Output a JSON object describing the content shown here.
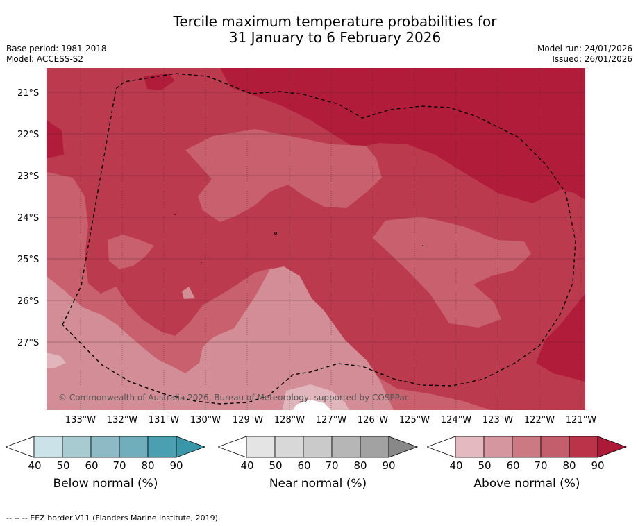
{
  "title_line1": "Tercile maximum temperature probabilities for",
  "title_line2": "31 January to 6 February 2026",
  "base_period": "Base period: 1981-2018",
  "model": "Model: ACCESS-S2",
  "model_run": "Model run: 24/01/2026",
  "issued": "Issued: 26/01/2026",
  "lat_labels": [
    "21°S",
    "22°S",
    "23°S",
    "24°S",
    "25°S",
    "26°S",
    "27°S"
  ],
  "lon_labels": [
    "133°W",
    "132°W",
    "131°W",
    "130°W",
    "129°W",
    "128°W",
    "127°W",
    "126°W",
    "125°W",
    "124°W",
    "123°W",
    "122°W",
    "121°W"
  ],
  "copyright": "© Commonwealth of Australia 2026, Bureau of Meteorology, supported by COSPPac",
  "legend": {
    "below": {
      "label": "Below normal (%)",
      "colors": [
        "#ffffff",
        "#cbe3e8",
        "#a8cbd2",
        "#8dbac5",
        "#70aebb",
        "#4aa0b0",
        "#3a97aa"
      ]
    },
    "near": {
      "label": "Near normal (%)",
      "colors": [
        "#ffffff",
        "#e4e4e4",
        "#d8d8d8",
        "#cacaca",
        "#b6b6b6",
        "#a2a2a2",
        "#888888"
      ]
    },
    "above": {
      "label": "Above normal (%)",
      "colors": [
        "#ffffff",
        "#e4b9c0",
        "#d6969f",
        "#cb7a84",
        "#c35e6d",
        "#bb3348",
        "#ad1a38"
      ]
    },
    "ticks": [
      "40",
      "50",
      "60",
      "70",
      "80",
      "90"
    ]
  },
  "map_colors": {
    "c90": "#b01c3a",
    "c80": "#bc3a4e",
    "c70": "#c8606e",
    "c60": "#d28d96",
    "c50": "#e0b6bc",
    "white": "#ffffff"
  },
  "footer": "--  --  -- EEZ border V11 (Flanders Marine Institute, 2019)."
}
